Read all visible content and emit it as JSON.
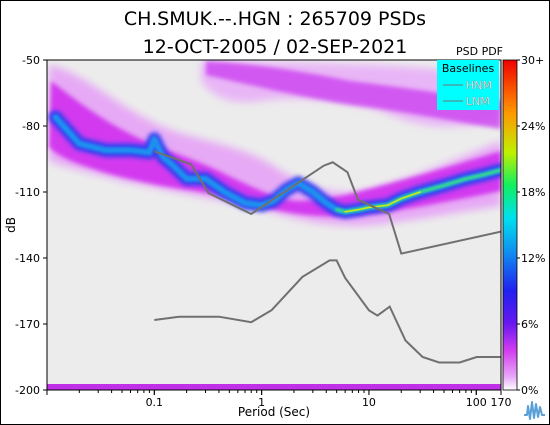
{
  "chart_data": {
    "type": "heatmap",
    "title": "CH.SMUK.--.HGN : 265709 PSDs",
    "subtitle": "12-OCT-2005 / 02-SEP-2021",
    "xlabel": "Period (Sec)",
    "ylabel": "dB",
    "x_scale": "log",
    "xlim": [
      0.01,
      170
    ],
    "ylim": [
      -200,
      -50
    ],
    "x_ticks": [
      0.1,
      1,
      10,
      100,
      170
    ],
    "x_tick_labels": [
      "0.1",
      "1",
      "10",
      "100",
      "170"
    ],
    "y_ticks": [
      -50,
      -80,
      -110,
      -140,
      -170,
      -200
    ],
    "y_tick_labels": [
      "-50",
      "-80",
      "-110",
      "-140",
      "-170",
      "-200"
    ],
    "colorbar": {
      "label": "PSD PDF",
      "range_percent": [
        0,
        30
      ],
      "tick_labels": [
        "30+",
        "24%",
        "18%",
        "12%",
        "6%",
        "0%"
      ],
      "colors": [
        "#ffffff",
        "#e8a8f8",
        "#d23cf0",
        "#4020f0",
        "#1090f0",
        "#00e0f0",
        "#10f060",
        "#c0f000",
        "#ff9800",
        "#f00000"
      ]
    },
    "legend": {
      "title": "Baselines",
      "placement": "top-right",
      "entries": [
        "HNM",
        "LNM"
      ],
      "background": "#00ffff"
    },
    "series": [
      {
        "name": "HNM",
        "color": "#707070",
        "x": [
          0.1,
          0.22,
          0.32,
          0.8,
          3.8,
          4.6,
          6.3,
          7.9,
          15.4,
          20,
          170
        ],
        "y": [
          -91.5,
          -97.4,
          -110.5,
          -120,
          -98,
          -96.5,
          -101,
          -113.5,
          -120,
          -138,
          -128
        ]
      },
      {
        "name": "LNM",
        "color": "#707070",
        "x": [
          0.1,
          0.17,
          0.4,
          0.8,
          1.24,
          2.4,
          4.3,
          5,
          6,
          10,
          12,
          15.6,
          21.9,
          31.6,
          45,
          70,
          101,
          154,
          170
        ],
        "y": [
          -168.2,
          -166.7,
          -166.7,
          -169.2,
          -163.7,
          -148.6,
          -141.1,
          -141.1,
          -149,
          -163.8,
          -166.2,
          -162.1,
          -177.5,
          -185,
          -187.5,
          -187.5,
          -185,
          -185,
          -185
        ]
      },
      {
        "name": "mode",
        "x": [
          0.012,
          0.02,
          0.035,
          0.06,
          0.09,
          0.1,
          0.12,
          0.15,
          0.2,
          0.3,
          0.45,
          0.7,
          1,
          1.3,
          1.7,
          2.2,
          3,
          4,
          5,
          6,
          8,
          10,
          15,
          20,
          30,
          50,
          80,
          120,
          170
        ],
        "y": [
          -76,
          -88,
          -91,
          -91,
          -92,
          -86,
          -94,
          -98,
          -104,
          -104,
          -110,
          -115,
          -116,
          -114,
          -109,
          -106,
          -110,
          -115,
          -118,
          -119,
          -118,
          -117,
          -116,
          -113,
          -110,
          -107,
          -104,
          -102,
          -100
        ]
      }
    ]
  }
}
